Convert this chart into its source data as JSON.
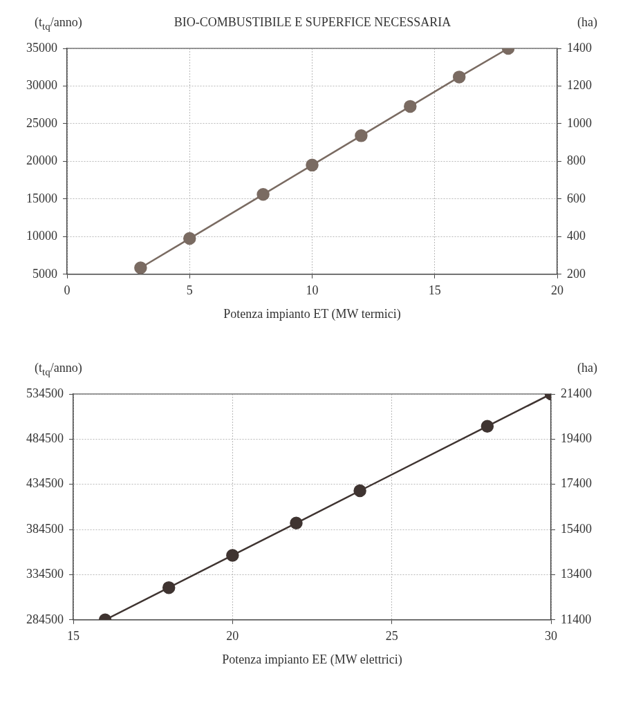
{
  "chart_data": [
    {
      "type": "line",
      "title": "BIO-COMBUSTIBILE E SUPERFICE NECESSARIA",
      "xlabel": "Potenza impianto ET (MW termici)",
      "ylabel": "(t$_{tq}$/anno)",
      "y2label": "(ha)",
      "x": [
        3,
        5,
        8,
        10,
        12,
        14,
        16,
        18
      ],
      "series": [
        {
          "color": "#7a6b62",
          "values": [
            5850,
            9750,
            15600,
            19500,
            23400,
            27300,
            31200,
            35000
          ]
        }
      ],
      "xlim": [
        0,
        20
      ],
      "xticks": [
        0,
        5,
        10,
        15,
        20
      ],
      "ylim": [
        5000,
        35000
      ],
      "yticks": [
        5000,
        10000,
        15000,
        20000,
        25000,
        30000,
        35000
      ],
      "y2lim": [
        200,
        1400
      ],
      "y2ticks": [
        200,
        400,
        600,
        800,
        1000,
        1200,
        1400
      ],
      "grid": true,
      "marker": "circle",
      "line_style": "solid"
    },
    {
      "type": "line",
      "xlabel": "Potenza impianto EE (MW elettrici)",
      "ylabel": "(t$_{tq}$/anno)",
      "y2label": "(ha)",
      "x": [
        16,
        18,
        20,
        22,
        24,
        28,
        30
      ],
      "series": [
        {
          "color": "#3f3431",
          "values": [
            284500,
            320200,
            355900,
            391600,
            427400,
            498800,
            534500
          ]
        }
      ],
      "xlim": [
        15,
        30
      ],
      "xticks": [
        15,
        20,
        25,
        30
      ],
      "ylim": [
        284500,
        534500
      ],
      "yticks": [
        284500,
        334500,
        384500,
        434500,
        484500,
        534500
      ],
      "y2lim": [
        11400,
        21400
      ],
      "y2ticks": [
        11400,
        13400,
        15400,
        17400,
        19400,
        21400
      ],
      "grid": true,
      "marker": "circle",
      "line_style": "solid"
    }
  ]
}
